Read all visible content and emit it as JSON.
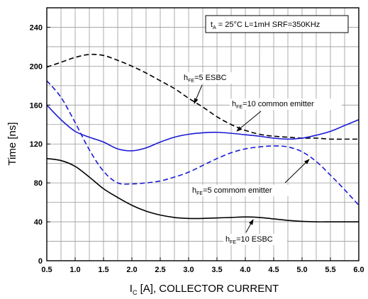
{
  "chart_data": {
    "type": "line",
    "xlabel": {
      "main": "I",
      "sub": "C",
      "rest": " [A], COLLECTOR CURRENT"
    },
    "ylabel": "Time [ns]",
    "xlim": [
      0.5,
      6.0
    ],
    "ylim": [
      0,
      260
    ],
    "x_ticks": [
      "0.5",
      "1.0",
      "1.5",
      "2.0",
      "2.5",
      "3.0",
      "3.5",
      "4.0",
      "4.5",
      "5.0",
      "5.5",
      "6.0"
    ],
    "y_ticks": [
      "0",
      "40",
      "80",
      "120",
      "160",
      "200",
      "240"
    ],
    "grid": true,
    "condition_label": {
      "pre": "t",
      "sub": "A",
      "post": " = 25°C L=1mH SRF=350KHz"
    },
    "series": [
      {
        "key": "hfe5-esbc",
        "color": "#000000",
        "dash": "dashed",
        "label": {
          "pre": "h",
          "sub": "FE",
          "post": "=5 ESBC"
        },
        "x": [
          0.5,
          0.75,
          1.0,
          1.25,
          1.5,
          1.75,
          2.0,
          2.25,
          2.5,
          2.75,
          3.0,
          3.25,
          3.5,
          3.75,
          4.0,
          4.25,
          4.5,
          4.75,
          5.0,
          5.25,
          5.5,
          5.75,
          6.0
        ],
        "y": [
          199,
          204,
          209,
          212,
          211,
          206,
          200,
          193,
          185,
          177,
          167,
          158,
          148,
          140,
          134,
          130,
          128,
          127,
          126,
          126,
          125,
          125,
          125
        ]
      },
      {
        "key": "hfe10-ce",
        "color": "#1a1ad6",
        "dash": "solid",
        "label": {
          "pre": "h",
          "sub": "FE",
          "post": "=10 common emitter"
        },
        "x": [
          0.5,
          0.75,
          1.0,
          1.25,
          1.5,
          1.75,
          2.0,
          2.25,
          2.5,
          2.75,
          3.0,
          3.25,
          3.5,
          3.75,
          4.0,
          4.25,
          4.5,
          4.75,
          5.0,
          5.25,
          5.5,
          5.75,
          6.0
        ],
        "y": [
          160,
          145,
          133,
          127,
          122,
          115,
          113,
          116,
          122,
          127,
          130,
          131.5,
          132,
          131,
          129.5,
          128,
          126,
          125,
          126,
          129,
          133,
          139,
          145
        ]
      },
      {
        "key": "hfe5-ce",
        "color": "#1a1ad6",
        "dash": "dashed",
        "label": {
          "pre": "h",
          "sub": "FE",
          "post": "=5 commom emitter"
        },
        "x": [
          0.5,
          0.75,
          1.0,
          1.25,
          1.5,
          1.75,
          2.0,
          2.25,
          2.5,
          2.75,
          3.0,
          3.25,
          3.5,
          3.75,
          4.0,
          4.25,
          4.5,
          4.75,
          5.0,
          5.25,
          5.5,
          5.75,
          6.0
        ],
        "y": [
          185,
          168,
          142,
          114,
          92,
          80,
          79,
          80,
          82,
          86,
          91,
          98,
          105,
          111,
          115,
          117,
          118,
          117,
          112,
          102,
          88,
          73,
          57
        ]
      },
      {
        "key": "hfe10-esbc",
        "color": "#000000",
        "dash": "solid",
        "label": {
          "pre": "h",
          "sub": "FE",
          "post": "=10 ESBC"
        },
        "x": [
          0.5,
          0.75,
          1.0,
          1.25,
          1.5,
          1.75,
          2.0,
          2.25,
          2.5,
          2.75,
          3.0,
          3.25,
          3.5,
          3.75,
          4.0,
          4.25,
          4.5,
          4.75,
          5.0,
          5.25,
          5.5,
          5.75,
          6.0
        ],
        "y": [
          105,
          103,
          97,
          86,
          74,
          65,
          57,
          51,
          47,
          44.5,
          43.5,
          43.5,
          44,
          44.5,
          45,
          44.5,
          43,
          41.5,
          40.5,
          40,
          40,
          40,
          40
        ]
      }
    ]
  }
}
